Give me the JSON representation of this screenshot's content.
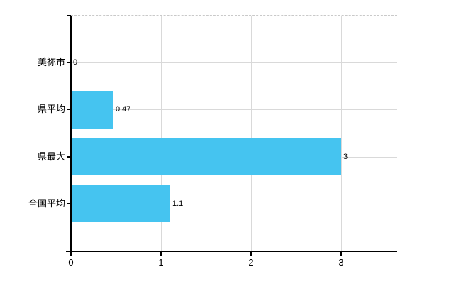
{
  "chart_data": {
    "type": "bar",
    "orientation": "horizontal",
    "title": "",
    "xlabel": "",
    "ylabel": "",
    "categories": [
      "美祢市",
      "県平均",
      "県最大",
      "全国平均"
    ],
    "values": [
      0,
      0.47,
      3,
      1.1
    ],
    "value_labels": [
      "0",
      "0.47",
      "3",
      "1.1"
    ],
    "x_ticks": [
      0,
      1,
      2,
      3
    ],
    "x_tick_labels": [
      "0",
      "1",
      "2",
      "3"
    ],
    "xlim": [
      0,
      3.62
    ],
    "grid": true,
    "legend": false,
    "colors": {
      "bar": "#45c4f0",
      "gridline": "#d9d9d9",
      "top_boundary": "#c9c9c9",
      "axis": "#000000",
      "text": "#000000"
    }
  }
}
